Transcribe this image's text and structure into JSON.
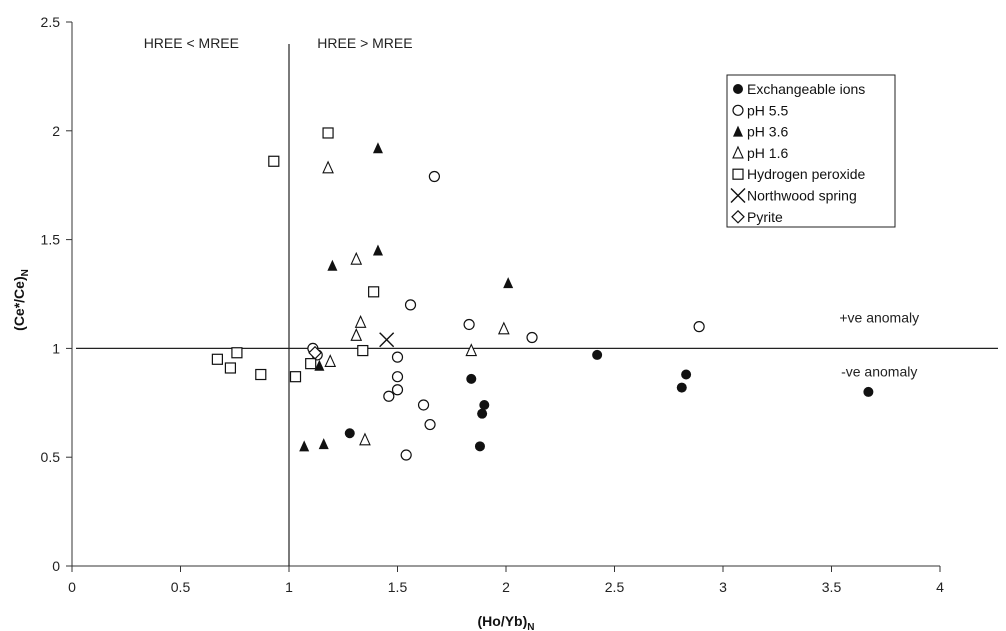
{
  "chart_data": {
    "type": "scatter",
    "xlabel": "(Ho/Yb)",
    "xlabel_sub": "N",
    "ylabel": "(Ce*/Ce)",
    "ylabel_sub": "N",
    "xlim": [
      0,
      4
    ],
    "ylim": [
      0,
      2.5
    ],
    "x_ticks": [
      0,
      0.5,
      1,
      1.5,
      2,
      2.5,
      3,
      3.5,
      4
    ],
    "y_ticks": [
      0,
      0.5,
      1,
      1.5,
      2,
      2.5
    ],
    "x_tick_labels": [
      "0",
      "0.5",
      "1",
      "1.5",
      "2",
      "2.5",
      "3",
      "3.5",
      "4"
    ],
    "y_tick_labels": [
      "0",
      "0.5",
      "1",
      "1.5",
      "2",
      "2.5"
    ],
    "grid": false,
    "legend_position": "top-right",
    "reference_lines": {
      "vertical_x": 1,
      "horizontal_y": 1
    },
    "annotations": [
      {
        "text": "HREE < MREE",
        "x": 0.55,
        "y": 2.38
      },
      {
        "text": "HREE > MREE",
        "x": 1.35,
        "y": 2.38
      },
      {
        "text": "+ve anomaly",
        "x": 3.72,
        "y": 1.12
      },
      {
        "text": "-ve anomaly",
        "x": 3.72,
        "y": 0.87
      }
    ],
    "series": [
      {
        "name": "Exchangeable ions",
        "marker": "circle-filled",
        "points": [
          [
            1.28,
            0.61
          ],
          [
            1.84,
            0.86
          ],
          [
            1.88,
            0.55
          ],
          [
            1.89,
            0.7
          ],
          [
            1.9,
            0.74
          ],
          [
            2.42,
            0.97
          ],
          [
            2.81,
            0.82
          ],
          [
            2.83,
            0.88
          ],
          [
            3.67,
            0.8
          ]
        ]
      },
      {
        "name": "pH 5.5",
        "marker": "circle-open",
        "points": [
          [
            1.11,
            1.0
          ],
          [
            1.13,
            0.97
          ],
          [
            1.46,
            0.78
          ],
          [
            1.5,
            0.81
          ],
          [
            1.5,
            0.87
          ],
          [
            1.5,
            0.96
          ],
          [
            1.54,
            0.51
          ],
          [
            1.56,
            1.2
          ],
          [
            1.62,
            0.74
          ],
          [
            1.65,
            0.65
          ],
          [
            1.67,
            1.79
          ],
          [
            1.83,
            1.11
          ],
          [
            2.12,
            1.05
          ],
          [
            2.89,
            1.1
          ]
        ]
      },
      {
        "name": "pH 3.6",
        "marker": "triangle-filled",
        "points": [
          [
            1.07,
            0.55
          ],
          [
            1.14,
            0.92
          ],
          [
            1.16,
            0.56
          ],
          [
            1.2,
            1.38
          ],
          [
            1.41,
            1.92
          ],
          [
            1.41,
            1.45
          ],
          [
            2.01,
            1.3
          ]
        ]
      },
      {
        "name": "pH 1.6",
        "marker": "triangle-open",
        "points": [
          [
            1.18,
            1.83
          ],
          [
            1.19,
            0.94
          ],
          [
            1.31,
            1.41
          ],
          [
            1.31,
            1.06
          ],
          [
            1.33,
            1.12
          ],
          [
            1.35,
            0.58
          ],
          [
            1.84,
            0.99
          ],
          [
            1.99,
            1.09
          ]
        ]
      },
      {
        "name": "Hydrogen peroxide",
        "marker": "square-open",
        "points": [
          [
            0.67,
            0.95
          ],
          [
            0.73,
            0.91
          ],
          [
            0.76,
            0.98
          ],
          [
            0.87,
            0.88
          ],
          [
            0.93,
            1.86
          ],
          [
            1.03,
            0.87
          ],
          [
            1.1,
            0.93
          ],
          [
            1.18,
            1.99
          ],
          [
            1.34,
            0.99
          ],
          [
            1.39,
            1.26
          ]
        ]
      },
      {
        "name": "Northwood spring",
        "marker": "cross",
        "points": [
          [
            1.45,
            1.04
          ]
        ]
      },
      {
        "name": "Pyrite",
        "marker": "diamond-open",
        "points": [
          [
            1.12,
            0.98
          ]
        ]
      }
    ]
  }
}
